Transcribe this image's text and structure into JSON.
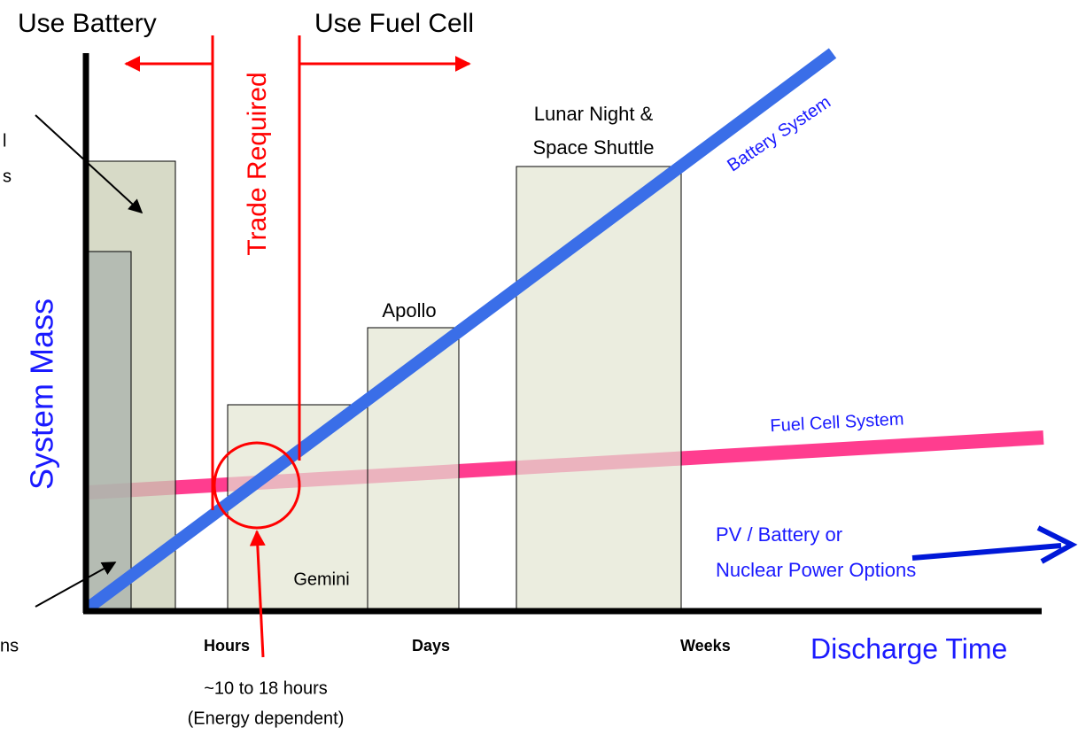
{
  "header": {
    "left": "Use Battery",
    "right": "Use Fuel Cell",
    "trade": "Trade Required"
  },
  "axes": {
    "y": "System Mass",
    "x": "Discharge Time",
    "ticks": [
      "Hours",
      "Days",
      "Weeks"
    ]
  },
  "boxes": {
    "lunar": [
      "Lunar Night &",
      "Space Shuttle"
    ],
    "apollo": "Apollo",
    "gemini": "Gemini"
  },
  "lines": {
    "battery": "Battery System",
    "fuel": "Fuel Cell System"
  },
  "options": [
    "PV / Battery or",
    "Nuclear Power Options"
  ],
  "crossover": [
    "~10 to 18 hours",
    "(Energy dependent)"
  ],
  "fragments": [
    "l",
    "s",
    "ns"
  ]
}
